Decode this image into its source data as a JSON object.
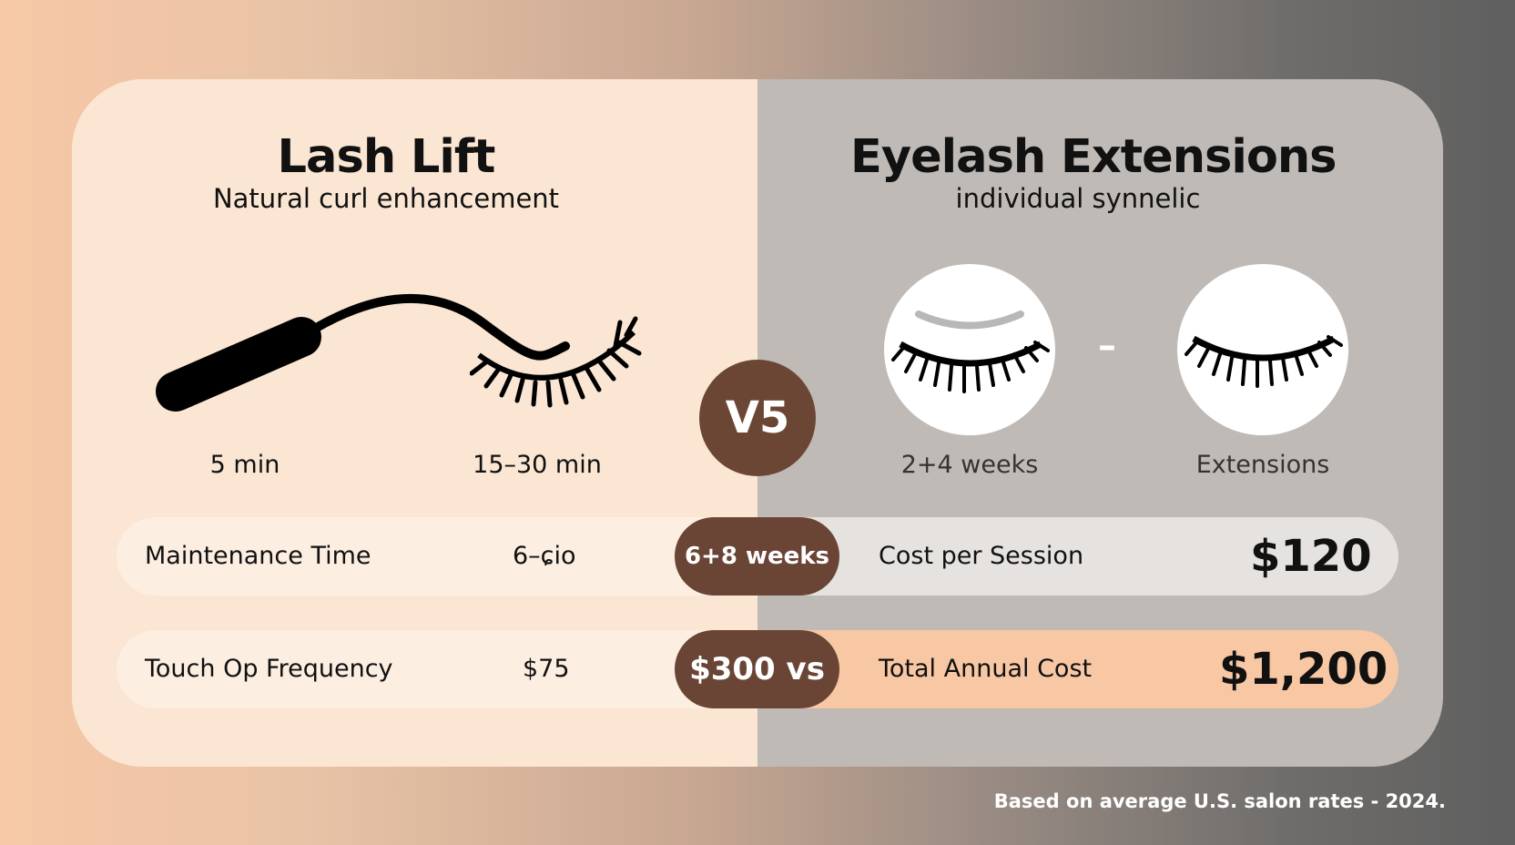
{
  "left": {
    "title": "Lash Lift",
    "subtitle": "Natural curl enhancement",
    "label_a": "5 min",
    "label_b": "15–30 min"
  },
  "right": {
    "title": "Eyelash Extensions",
    "subtitle": "individual synnelic",
    "label_a": "2+4 weeks",
    "label_b": "Extensions",
    "dash": "–"
  },
  "vs": "V5",
  "rows": [
    {
      "left_label": "Maintenance Time",
      "left_value": "6–ɕio",
      "center": "6+8 weeks",
      "right_label": "Cost per Session",
      "right_value": "$120"
    },
    {
      "left_label": "Touch Op Frequency",
      "left_value": "$75",
      "center": "$300 vs",
      "right_label": "Total Annual Cost",
      "right_value": "$1,200"
    }
  ],
  "footnote": "Based on average U.S. salon rates - 2024.",
  "colors": {
    "accent_brown": "#6a4536",
    "left_panel": "#fbe6d3",
    "right_panel": "#bfbab6",
    "highlight_peach": "#f8c7a3"
  },
  "icons": [
    "mascara-wand-icon",
    "lash-strip-icon",
    "closed-eye-lash-icon"
  ]
}
